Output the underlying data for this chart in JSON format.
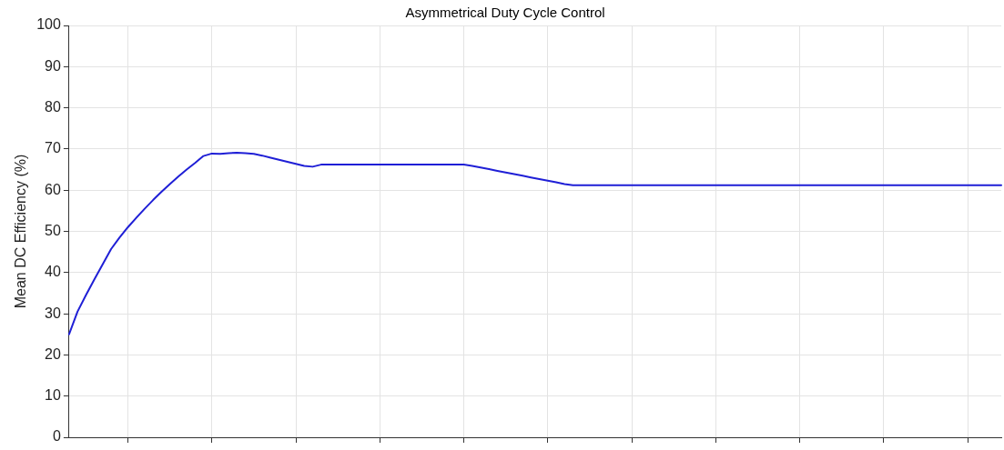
{
  "chart_data": {
    "type": "line",
    "title": "Asymmetrical Duty Cycle Control",
    "ylabel": "Mean DC Efficiency (%)",
    "categories": [
      null,
      null,
      null,
      null,
      null,
      null,
      null,
      null,
      null,
      null,
      null,
      null,
      null,
      null,
      null,
      null,
      null,
      null,
      null,
      null,
      null,
      null,
      null,
      null,
      null,
      null,
      null,
      null,
      null,
      null,
      null,
      null,
      null,
      null,
      null,
      null,
      null,
      null,
      null,
      null,
      null,
      null,
      null,
      null,
      null,
      null,
      null,
      null,
      null,
      null,
      null,
      null,
      null,
      null,
      null,
      null,
      null,
      null,
      null,
      null,
      null,
      null,
      null,
      null,
      null,
      null,
      null,
      null,
      null,
      null,
      null,
      null,
      null,
      null,
      null,
      null,
      null,
      null,
      null,
      null,
      null,
      null,
      null,
      null,
      null,
      null,
      null,
      null,
      null,
      null,
      null,
      null,
      null,
      null,
      null,
      null,
      null,
      null,
      null,
      null,
      null,
      null,
      null,
      null,
      null,
      null,
      null,
      null,
      null,
      null,
      null,
      null
    ],
    "ylim": [
      0,
      100
    ],
    "yticks": [
      0,
      10,
      20,
      30,
      40,
      50,
      60,
      70,
      80,
      90,
      100
    ],
    "grid": true,
    "tick_labels": "y",
    "marker": "none",
    "line_style": "solid",
    "series": [
      {
        "color": "#1f1fd6",
        "values": [
          25,
          30.5,
          34.5,
          38.3,
          42,
          45.7,
          48.5,
          51,
          53.3,
          55.5,
          57.6,
          59.6,
          61.5,
          63.3,
          65,
          66.6,
          68.3,
          68.9,
          68.8,
          69,
          69.1,
          69,
          68.8,
          68.4,
          67.9,
          67.4,
          66.9,
          66.4,
          65.9,
          65.7,
          66.2,
          66.2,
          66.2,
          66.2,
          66.2,
          66.2,
          66.2,
          66.2,
          66.2,
          66.2,
          66.2,
          66.2,
          66.2,
          66.2,
          66.2,
          66.2,
          66.2,
          66.2,
          65.9,
          65.5,
          65.1,
          64.7,
          64.3,
          63.9,
          63.5,
          63.1,
          62.7,
          62.3,
          61.9,
          61.5,
          61.2,
          61.2,
          61.2,
          61.2,
          61.2,
          61.2,
          61.2,
          61.2,
          61.2,
          61.2,
          61.2,
          61.2,
          61.2,
          61.2,
          61.2,
          61.2,
          61.2,
          61.2,
          61.2,
          61.2,
          61.2,
          61.2,
          61.2,
          61.2,
          61.2,
          61.2,
          61.2,
          61.2,
          61.2,
          61.2,
          61.2,
          61.2,
          61.2,
          61.2,
          61.2,
          61.2,
          61.2,
          61.2,
          61.2,
          61.2,
          61.2,
          61.2,
          61.2,
          61.2,
          61.2,
          61.2,
          61.2,
          61.2,
          61.2,
          61.2,
          61.2,
          61.2
        ]
      }
    ]
  }
}
